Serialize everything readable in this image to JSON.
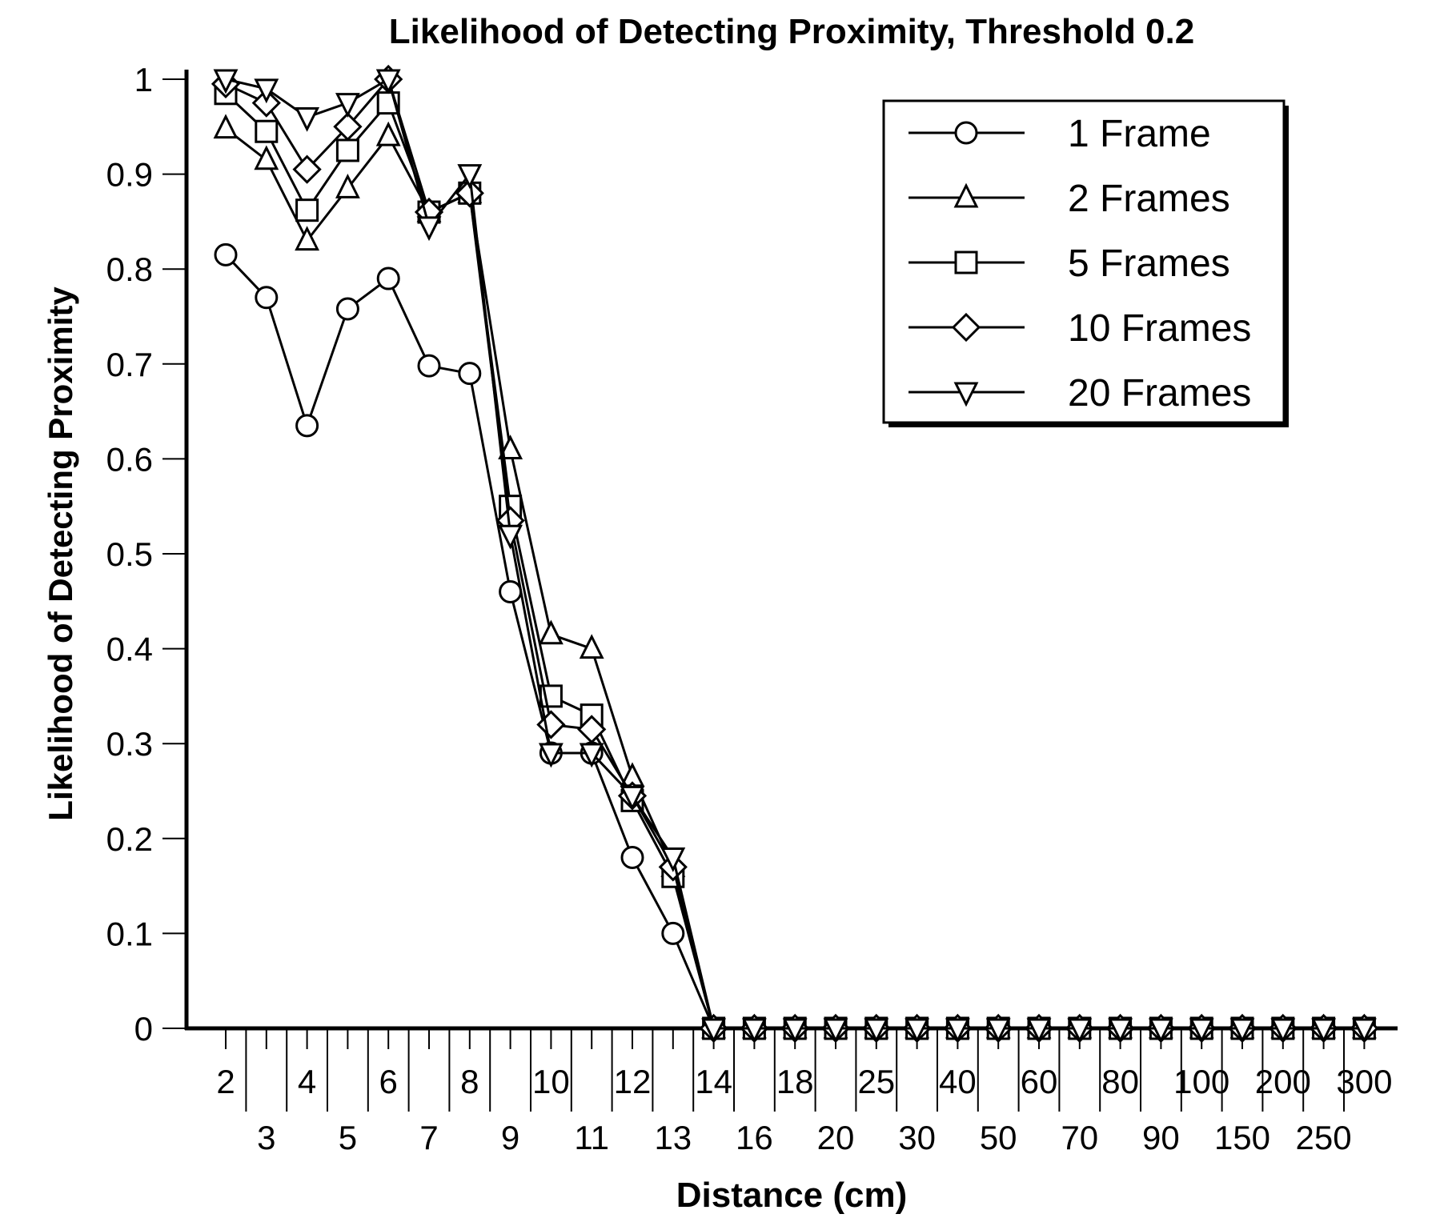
{
  "chart_data": {
    "type": "line",
    "title": "Likelihood of Detecting Proximity, Threshold 0.2",
    "xlabel": "Distance (cm)",
    "ylabel": "Likelihood of Detecting Proximity",
    "ylim": [
      0,
      1
    ],
    "yticks": [
      "0",
      "0.1",
      "0.2",
      "0.3",
      "0.4",
      "0.5",
      "0.6",
      "0.7",
      "0.8",
      "0.9",
      "1"
    ],
    "categories": [
      "2",
      "3",
      "4",
      "5",
      "6",
      "7",
      "8",
      "9",
      "10",
      "11",
      "12",
      "13",
      "14",
      "16",
      "18",
      "20",
      "25",
      "30",
      "40",
      "50",
      "60",
      "70",
      "80",
      "90",
      "100",
      "150",
      "200",
      "250",
      "300"
    ],
    "legend_position": "top-right",
    "grid": false,
    "series": [
      {
        "name": "1 Frame",
        "marker": "circle",
        "values": [
          0.815,
          0.77,
          0.635,
          0.758,
          0.79,
          0.698,
          0.69,
          0.46,
          0.29,
          0.29,
          0.18,
          0.1,
          0,
          0,
          0,
          0,
          0,
          0,
          0,
          0,
          0,
          0,
          0,
          0,
          0,
          0,
          0,
          0,
          0
        ]
      },
      {
        "name": "2 Frames",
        "marker": "triangle-up",
        "values": [
          0.948,
          0.915,
          0.83,
          0.885,
          0.94,
          0.86,
          0.88,
          0.61,
          0.415,
          0.4,
          0.265,
          0.17,
          0,
          0,
          0,
          0,
          0,
          0,
          0,
          0,
          0,
          0,
          0,
          0,
          0,
          0,
          0,
          0,
          0
        ]
      },
      {
        "name": "5 Frames",
        "marker": "square",
        "values": [
          0.985,
          0.945,
          0.862,
          0.925,
          0.975,
          0.86,
          0.88,
          0.55,
          0.35,
          0.33,
          0.24,
          0.16,
          0,
          0,
          0,
          0,
          0,
          0,
          0,
          0,
          0,
          0,
          0,
          0,
          0,
          0,
          0,
          0,
          0
        ]
      },
      {
        "name": "10 Frames",
        "marker": "diamond",
        "values": [
          0.995,
          0.975,
          0.905,
          0.95,
          1.0,
          0.86,
          0.88,
          0.535,
          0.32,
          0.315,
          0.245,
          0.17,
          0,
          0,
          0,
          0,
          0,
          0,
          0,
          0,
          0,
          0,
          0,
          0,
          0,
          0,
          0,
          0,
          0
        ]
      },
      {
        "name": "20 Frames",
        "marker": "triangle-down",
        "values": [
          1.0,
          0.99,
          0.96,
          0.975,
          1.0,
          0.845,
          0.9,
          0.52,
          0.29,
          0.29,
          0.245,
          0.18,
          0,
          0,
          0,
          0,
          0,
          0,
          0,
          0,
          0,
          0,
          0,
          0,
          0,
          0,
          0,
          0,
          0
        ]
      }
    ]
  }
}
